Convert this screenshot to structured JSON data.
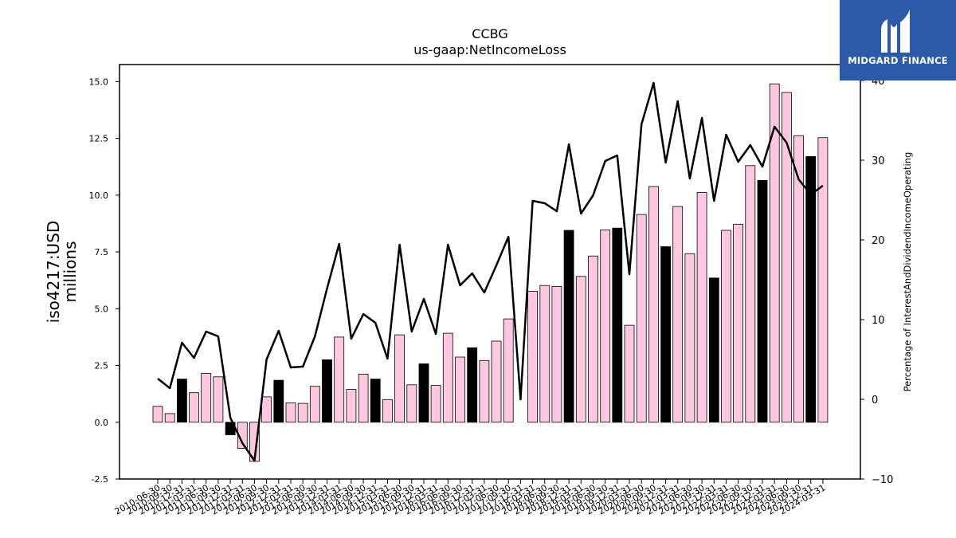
{
  "chart_data": {
    "type": "bar+line",
    "title": "CCBG",
    "subtitle": "us-gaap:NetIncomeLoss",
    "ylabel": "iso4217:USD\nmillions",
    "y2label": "Percentage of InterestAndDividendIncomeOperating",
    "ylim": [
      -2.5,
      15.75
    ],
    "y2lim": [
      -10,
      42
    ],
    "yticks": [
      "-2.5",
      "0.0",
      "2.5",
      "5.0",
      "7.5",
      "10.0",
      "12.5",
      "15.0"
    ],
    "y2ticks": [
      "−10",
      "0",
      "10",
      "20",
      "30",
      "40"
    ],
    "bar_colors": {
      "quarter": "#ffc8e0",
      "annual": "#000000"
    },
    "line_color": "#000000",
    "categories": [
      "2010-06-30",
      "2010-09-30",
      "2010-12-31",
      "2011-03-31",
      "2011-06-30",
      "2011-09-30",
      "2011-12-31",
      "2012-03-31",
      "2012-06-30",
      "2012-09-30",
      "2012-12-31",
      "2013-03-31",
      "2013-06-30",
      "2013-09-30",
      "2013-12-31",
      "2014-03-31",
      "2014-06-30",
      "2014-09-30",
      "2014-12-31",
      "2015-03-31",
      "2015-06-30",
      "2015-09-30",
      "2015-12-31",
      "2016-03-31",
      "2016-06-30",
      "2016-09-30",
      "2016-12-31",
      "2017-03-31",
      "2017-06-30",
      "2017-09-30",
      "2017-12-31",
      "2018-03-31",
      "2018-06-30",
      "2018-09-30",
      "2018-12-31",
      "2019-03-31",
      "2019-06-30",
      "2019-09-30",
      "2019-12-31",
      "2020-03-31",
      "2020-06-30",
      "2020-09-30",
      "2020-12-31",
      "2021-03-31",
      "2021-06-30",
      "2021-09-30",
      "2021-12-31",
      "2022-03-31",
      "2022-06-30",
      "2022-09-30",
      "2022-12-31",
      "2023-03-31",
      "2023-06-30",
      "2023-09-30",
      "2023-12-31",
      "2024-03-31"
    ],
    "series": [
      {
        "kind": "bar",
        "values": [
          0.7,
          0.38,
          1.9,
          1.3,
          2.15,
          2.0,
          -0.55,
          -1.15,
          -1.72,
          1.12,
          1.85,
          0.85,
          0.83,
          1.58,
          2.75,
          3.75,
          1.45,
          2.12,
          1.9,
          1.0,
          3.85,
          1.65,
          2.57,
          1.62,
          3.92,
          2.87,
          3.28,
          2.72,
          3.57,
          4.55,
          0.0,
          5.77,
          6.02,
          5.98,
          8.45,
          6.42,
          7.32,
          8.47,
          8.55,
          4.27,
          9.15,
          10.38,
          7.73,
          9.5,
          7.42,
          10.12,
          6.35,
          8.45,
          8.72,
          11.3,
          10.65,
          14.9,
          14.52,
          12.62,
          11.7,
          12.53
        ],
        "annual": [
          false,
          false,
          true,
          false,
          false,
          false,
          true,
          false,
          false,
          false,
          true,
          false,
          false,
          false,
          true,
          false,
          false,
          false,
          true,
          false,
          false,
          false,
          true,
          false,
          false,
          false,
          true,
          false,
          false,
          false,
          false,
          false,
          false,
          false,
          true,
          false,
          false,
          false,
          true,
          false,
          false,
          false,
          true,
          false,
          false,
          false,
          true,
          false,
          false,
          false,
          true,
          false,
          false,
          false,
          true,
          false
        ]
      },
      {
        "kind": "line",
        "axis": "right",
        "values": [
          2.6,
          1.4,
          7.1,
          5.2,
          8.5,
          7.9,
          -2.3,
          -5.5,
          -7.7,
          5.0,
          8.6,
          4.0,
          4.1,
          7.9,
          13.9,
          19.5,
          7.6,
          10.7,
          9.6,
          5.1,
          19.4,
          8.5,
          12.6,
          8.2,
          19.4,
          14.3,
          15.8,
          13.4,
          16.8,
          20.4,
          0.0,
          24.9,
          24.6,
          23.6,
          32.0,
          23.3,
          25.6,
          29.9,
          30.6,
          15.7,
          34.5,
          39.7,
          29.7,
          37.4,
          27.7,
          35.3,
          24.9,
          33.2,
          29.8,
          31.9,
          29.2,
          34.2,
          32.2,
          27.6,
          25.7,
          26.8
        ]
      }
    ]
  },
  "logo": {
    "text": "MIDGARD FINANCE"
  }
}
